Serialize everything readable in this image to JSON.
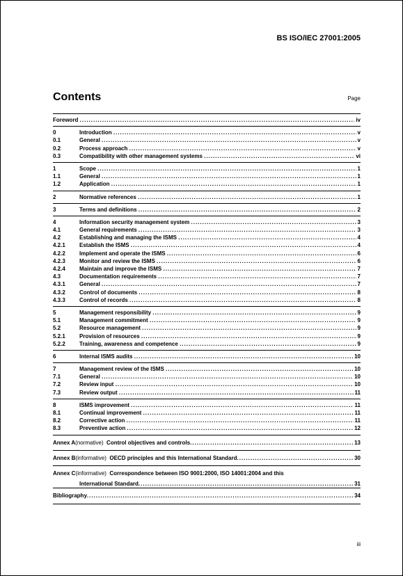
{
  "document_ref": "BS ISO/IEC 27001:2005",
  "contents_heading": "Contents",
  "page_label": "Page",
  "page_number": "iii",
  "groups": [
    [
      {
        "num": "",
        "title": "Foreword",
        "page": "iv"
      }
    ],
    [
      {
        "num": "0",
        "title": "Introduction",
        "page": "v"
      },
      {
        "num": "0.1",
        "title": "General",
        "page": "v"
      },
      {
        "num": "0.2",
        "title": "Process approach",
        "page": "v"
      },
      {
        "num": "0.3",
        "title": "Compatibility with other management systems",
        "page": "vi"
      }
    ],
    [
      {
        "num": "1",
        "title": "Scope",
        "page": "1"
      },
      {
        "num": "1.1",
        "title": "General",
        "page": "1"
      },
      {
        "num": "1.2",
        "title": "Application",
        "page": "1"
      }
    ],
    [
      {
        "num": "2",
        "title": "Normative references",
        "page": "1"
      }
    ],
    [
      {
        "num": "3",
        "title": "Terms and definitions",
        "page": "2"
      }
    ],
    [
      {
        "num": "4",
        "title": "Information security management system",
        "page": "3"
      },
      {
        "num": "4.1",
        "title": "General requirements",
        "page": "3"
      },
      {
        "num": "4.2",
        "title": "Establishing and managing the ISMS",
        "page": "4"
      },
      {
        "num": "4.2.1",
        "title": "Establish the ISMS",
        "page": "4"
      },
      {
        "num": "4.2.2",
        "title": "Implement and operate the ISMS",
        "page": "6"
      },
      {
        "num": "4.2.3",
        "title": "Monitor and review the ISMS",
        "page": "6"
      },
      {
        "num": "4.2.4",
        "title": "Maintain and improve the ISMS",
        "page": "7"
      },
      {
        "num": "4.3",
        "title": "Documentation requirements",
        "page": "7"
      },
      {
        "num": "4.3.1",
        "title": "General",
        "page": "7"
      },
      {
        "num": "4.3.2",
        "title": "Control of documents",
        "page": "8"
      },
      {
        "num": "4.3.3",
        "title": "Control of records",
        "page": "8"
      }
    ],
    [
      {
        "num": "5",
        "title": "Management responsibility",
        "page": "9"
      },
      {
        "num": "5.1",
        "title": "Management commitment",
        "page": "9"
      },
      {
        "num": "5.2",
        "title": "Resource management",
        "page": "9"
      },
      {
        "num": "5.2.1",
        "title": "Provision of resources",
        "page": "9"
      },
      {
        "num": "5.2.2",
        "title": "Training, awareness and competence",
        "page": "9"
      }
    ],
    [
      {
        "num": "6",
        "title": "Internal ISMS audits",
        "page": "10"
      }
    ],
    [
      {
        "num": "7",
        "title": "Management review of the ISMS",
        "page": "10"
      },
      {
        "num": "7.1",
        "title": "General",
        "page": "10"
      },
      {
        "num": "7.2",
        "title": "Review input",
        "page": "10"
      },
      {
        "num": "7.3",
        "title": "Review output",
        "page": "11"
      }
    ],
    [
      {
        "num": "8",
        "title": "ISMS improvement",
        "page": "11"
      },
      {
        "num": "8.1",
        "title": "Continual improvement",
        "page": "11"
      },
      {
        "num": "8.2",
        "title": "Corrective action",
        "page": "11"
      },
      {
        "num": "8.3",
        "title": "Preventive action",
        "page": "12"
      }
    ]
  ],
  "annexes": [
    {
      "prefix": "Annex A",
      "type": "(normative)",
      "title": "Control objectives and controls",
      "page": "13"
    },
    {
      "prefix": "Annex B",
      "type": "(informative)",
      "title": "OECD principles and this International Standard",
      "page": "30"
    },
    {
      "prefix": "Annex C",
      "type": "(informative)",
      "title": "Correspondence between ISO 9001:2000, ISO 14001:2004 and this",
      "continuation": "International Standard",
      "page": "31"
    }
  ],
  "bibliography": {
    "title": "Bibliography",
    "page": "34"
  }
}
